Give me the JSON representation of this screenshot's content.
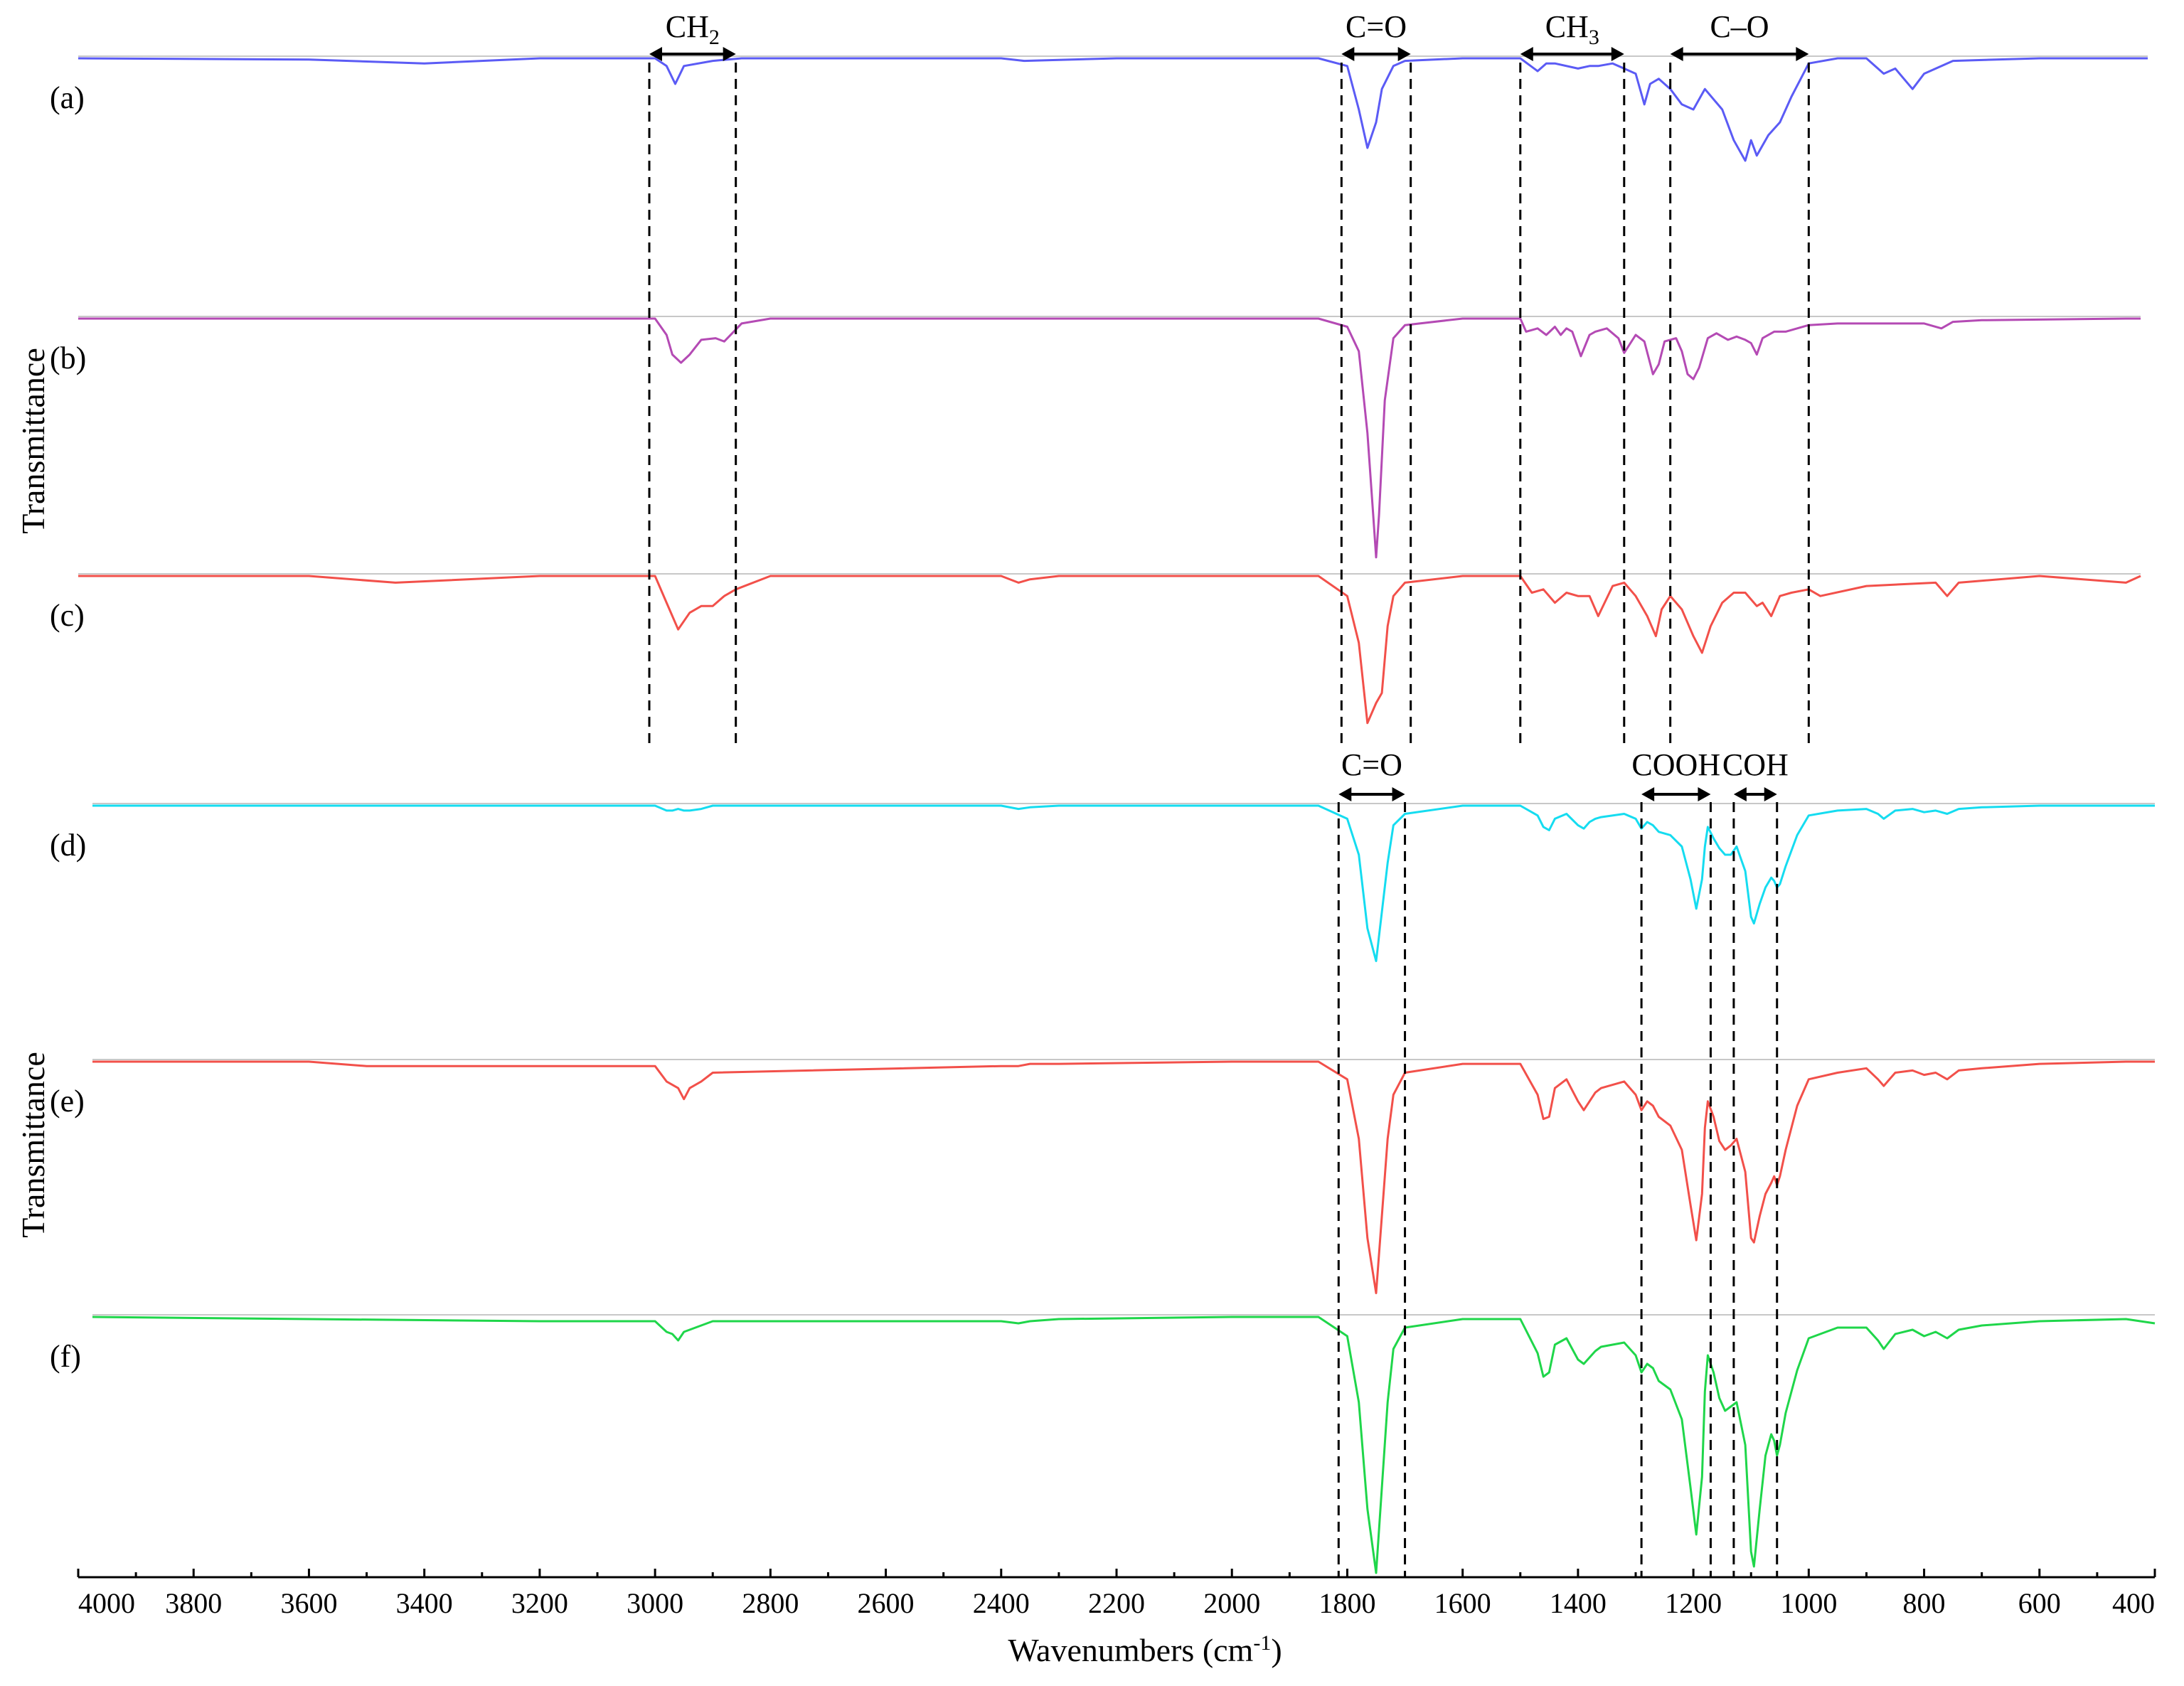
{
  "chart_data": {
    "type": "line",
    "x_axis": {
      "label": "Wavenumbers (cm",
      "label_sup": "-1",
      "label_end": ")",
      "xlim": [
        4000,
        400
      ],
      "ticks": [
        4000,
        3800,
        3600,
        3400,
        3200,
        3000,
        2800,
        2600,
        2400,
        2200,
        2000,
        1800,
        1600,
        1400,
        1200,
        1000,
        800,
        600,
        400
      ]
    },
    "y_axis": {
      "label": "Transmittance",
      "label_lower": "Transmittance"
    },
    "grid": false,
    "colors": {
      "a": "#5b5bf5",
      "b": "#b44ab4",
      "c": "#f2504a",
      "d": "#15dcf0",
      "e": "#f2504a",
      "f": "#1fd64a"
    },
    "series": [
      {
        "name": "(a)",
        "x": [
          4000,
          3600,
          3400,
          3200,
          3000,
          2980,
          2965,
          2950,
          2900,
          2850,
          2800,
          2400,
          2360,
          2200,
          2000,
          1850,
          1800,
          1780,
          1765,
          1750,
          1740,
          1720,
          1700,
          1600,
          1500,
          1470,
          1455,
          1440,
          1400,
          1380,
          1365,
          1340,
          1300,
          1285,
          1275,
          1260,
          1240,
          1220,
          1200,
          1180,
          1150,
          1130,
          1110,
          1100,
          1090,
          1070,
          1050,
          1030,
          1000,
          950,
          900,
          870,
          850,
          820,
          800,
          750,
          600,
          400
        ],
        "y": [
          0,
          -0.05,
          -0.2,
          0,
          0,
          -0.3,
          -1,
          -0.3,
          -0.1,
          0,
          0,
          0,
          -0.1,
          0,
          0,
          0,
          -0.3,
          -2,
          -3.5,
          -2.5,
          -1.2,
          -0.3,
          -0.1,
          0,
          0,
          -0.5,
          -0.2,
          -0.2,
          -0.4,
          -0.3,
          -0.3,
          -0.2,
          -0.6,
          -1.8,
          -1,
          -0.8,
          -1.2,
          -1.8,
          -2,
          -1.2,
          -2,
          -3.2,
          -4,
          -3.2,
          -3.8,
          -3,
          -2.5,
          -1.5,
          -0.2,
          0,
          0,
          -0.6,
          -0.4,
          -1.2,
          -0.6,
          -0.1,
          0,
          0
        ]
      },
      {
        "name": "(b)",
        "x": [
          4000,
          3600,
          3200,
          3000,
          2980,
          2970,
          2955,
          2940,
          2920,
          2895,
          2880,
          2850,
          2800,
          2400,
          2000,
          1850,
          1800,
          1780,
          1765,
          1755,
          1750,
          1745,
          1735,
          1720,
          1700,
          1600,
          1500,
          1490,
          1470,
          1455,
          1440,
          1430,
          1420,
          1410,
          1400,
          1395,
          1380,
          1370,
          1350,
          1330,
          1320,
          1300,
          1285,
          1270,
          1260,
          1250,
          1230,
          1220,
          1210,
          1200,
          1190,
          1175,
          1160,
          1140,
          1125,
          1110,
          1100,
          1090,
          1080,
          1060,
          1040,
          1020,
          1000,
          950,
          900,
          800,
          770,
          750,
          700,
          450,
          400
        ],
        "y": [
          0,
          0,
          0,
          0,
          -1,
          -2.2,
          -2.7,
          -2.2,
          -1.3,
          -1.2,
          -1.4,
          -0.3,
          0,
          0,
          0,
          0,
          -0.5,
          -2,
          -7,
          -12,
          -14.6,
          -12,
          -5,
          -1.2,
          -0.4,
          0,
          0,
          -0.8,
          -0.6,
          -1,
          -0.5,
          -1,
          -0.6,
          -0.8,
          -1.8,
          -2.3,
          -1,
          -0.8,
          -0.6,
          -1.2,
          -2.1,
          -1,
          -1.4,
          -3.4,
          -2.8,
          -1.4,
          -1.2,
          -2,
          -3.4,
          -3.7,
          -3,
          -1.2,
          -0.9,
          -1.3,
          -1.1,
          -1.3,
          -1.5,
          -2.2,
          -1.2,
          -0.8,
          -0.8,
          -0.6,
          -0.4,
          -0.3,
          -0.3,
          -0.3,
          -0.6,
          -0.2,
          -0.1,
          0,
          0
        ]
      },
      {
        "name": "(c)",
        "x": [
          4000,
          3600,
          3450,
          3200,
          3000,
          2980,
          2960,
          2940,
          2920,
          2900,
          2880,
          2860,
          2800,
          2400,
          2370,
          2350,
          2300,
          2000,
          1850,
          1800,
          1780,
          1765,
          1750,
          1740,
          1730,
          1720,
          1700,
          1600,
          1500,
          1480,
          1460,
          1440,
          1420,
          1400,
          1380,
          1365,
          1340,
          1320,
          1300,
          1280,
          1265,
          1255,
          1240,
          1220,
          1200,
          1185,
          1170,
          1150,
          1130,
          1110,
          1090,
          1080,
          1065,
          1050,
          1030,
          1000,
          980,
          900,
          780,
          760,
          740,
          600,
          450,
          400
        ],
        "y": [
          0,
          0,
          -0.2,
          0,
          0,
          -0.8,
          -1.6,
          -1.1,
          -0.9,
          -0.9,
          -0.6,
          -0.4,
          0,
          0,
          -0.2,
          -0.1,
          0,
          0,
          0,
          -0.6,
          -2,
          -4.4,
          -3.8,
          -3.5,
          -1.5,
          -0.6,
          -0.2,
          0,
          0,
          -0.5,
          -0.4,
          -0.8,
          -0.5,
          -0.6,
          -0.6,
          -1.2,
          -0.3,
          -0.2,
          -0.6,
          -1.2,
          -1.8,
          -1,
          -0.6,
          -1,
          -1.8,
          -2.3,
          -1.5,
          -0.8,
          -0.5,
          -0.5,
          -0.9,
          -0.8,
          -1.2,
          -0.6,
          -0.5,
          -0.4,
          -0.6,
          -0.3,
          -0.2,
          -0.6,
          -0.2,
          0,
          -0.2,
          0
        ]
      },
      {
        "name": "(d)",
        "x": [
          4000,
          3600,
          3200,
          3000,
          2980,
          2970,
          2960,
          2950,
          2940,
          2920,
          2900,
          2400,
          2370,
          2350,
          2300,
          2000,
          1850,
          1800,
          1780,
          1765,
          1750,
          1740,
          1730,
          1720,
          1700,
          1600,
          1500,
          1470,
          1460,
          1450,
          1440,
          1420,
          1400,
          1390,
          1380,
          1370,
          1360,
          1320,
          1300,
          1290,
          1280,
          1270,
          1260,
          1240,
          1220,
          1205,
          1195,
          1185,
          1180,
          1175,
          1165,
          1155,
          1145,
          1135,
          1125,
          1110,
          1100,
          1095,
          1085,
          1075,
          1065,
          1060,
          1055,
          1050,
          1040,
          1020,
          1000,
          950,
          900,
          880,
          870,
          850,
          820,
          800,
          780,
          760,
          740,
          700,
          600,
          450,
          400
        ],
        "y": [
          0,
          0,
          0,
          0,
          -0.3,
          -0.3,
          -0.2,
          -0.3,
          -0.3,
          -0.2,
          0,
          0,
          -0.2,
          -0.1,
          0,
          0,
          0,
          -0.8,
          -3,
          -7.5,
          -9.5,
          -6.5,
          -3.5,
          -1.2,
          -0.5,
          0,
          0,
          -0.6,
          -1.3,
          -1.5,
          -0.8,
          -0.5,
          -1.2,
          -1.4,
          -1,
          -0.8,
          -0.7,
          -0.5,
          -0.8,
          -1.4,
          -1,
          -1.2,
          -1.6,
          -1.8,
          -2.5,
          -4.5,
          -6.3,
          -4.5,
          -2.5,
          -1.3,
          -2,
          -2.6,
          -3,
          -3,
          -2.5,
          -4,
          -6.8,
          -7.2,
          -6,
          -5,
          -4.4,
          -4.6,
          -5,
          -4.8,
          -3.7,
          -1.8,
          -0.6,
          -0.3,
          -0.2,
          -0.5,
          -0.8,
          -0.3,
          -0.2,
          -0.4,
          -0.3,
          -0.5,
          -0.2,
          -0.1,
          0,
          0,
          0
        ]
      },
      {
        "name": "(e)",
        "x": [
          4000,
          3600,
          3500,
          3200,
          3000,
          2980,
          2960,
          2950,
          2940,
          2920,
          2900,
          2400,
          2370,
          2350,
          2300,
          2000,
          1850,
          1800,
          1780,
          1765,
          1750,
          1740,
          1730,
          1720,
          1700,
          1600,
          1500,
          1470,
          1460,
          1450,
          1440,
          1420,
          1400,
          1390,
          1380,
          1370,
          1360,
          1320,
          1300,
          1290,
          1280,
          1270,
          1260,
          1240,
          1220,
          1205,
          1195,
          1185,
          1180,
          1175,
          1165,
          1155,
          1145,
          1135,
          1125,
          1110,
          1100,
          1095,
          1085,
          1075,
          1065,
          1060,
          1055,
          1050,
          1040,
          1020,
          1000,
          950,
          900,
          880,
          870,
          850,
          820,
          800,
          780,
          760,
          740,
          700,
          600,
          450,
          400
        ],
        "y": [
          0,
          0,
          -0.2,
          -0.2,
          -0.2,
          -0.9,
          -1.2,
          -1.7,
          -1.2,
          -0.9,
          -0.5,
          -0.2,
          -0.2,
          -0.1,
          -0.1,
          0,
          0,
          -0.8,
          -3.5,
          -8,
          -10.5,
          -7,
          -3.5,
          -1.5,
          -0.5,
          -0.1,
          -0.1,
          -1.5,
          -2.6,
          -2.5,
          -1.2,
          -0.8,
          -1.8,
          -2.2,
          -1.8,
          -1.4,
          -1.2,
          -0.9,
          -1.5,
          -2.2,
          -1.8,
          -2,
          -2.5,
          -2.9,
          -4,
          -6.5,
          -8.1,
          -6,
          -3,
          -1.8,
          -2.5,
          -3.6,
          -4,
          -3.8,
          -3.5,
          -5,
          -8,
          -8.2,
          -7,
          -6,
          -5.5,
          -5.2,
          -5.6,
          -5.2,
          -4,
          -2,
          -0.8,
          -0.5,
          -0.3,
          -0.8,
          -1.1,
          -0.5,
          -0.4,
          -0.6,
          -0.5,
          -0.8,
          -0.4,
          -0.3,
          -0.1,
          0,
          0
        ]
      },
      {
        "name": "(f)",
        "x": [
          4000,
          3600,
          3200,
          3000,
          2980,
          2970,
          2960,
          2950,
          2940,
          2920,
          2900,
          2400,
          2370,
          2350,
          2300,
          2000,
          1850,
          1800,
          1780,
          1765,
          1750,
          1740,
          1730,
          1720,
          1700,
          1600,
          1500,
          1470,
          1460,
          1450,
          1440,
          1420,
          1400,
          1390,
          1380,
          1370,
          1360,
          1320,
          1300,
          1290,
          1280,
          1270,
          1260,
          1240,
          1220,
          1205,
          1195,
          1185,
          1180,
          1175,
          1165,
          1155,
          1145,
          1135,
          1125,
          1110,
          1100,
          1095,
          1085,
          1075,
          1065,
          1060,
          1055,
          1050,
          1040,
          1020,
          1000,
          950,
          900,
          880,
          870,
          850,
          820,
          800,
          780,
          760,
          740,
          700,
          600,
          450,
          400
        ],
        "y": [
          0,
          -0.1,
          -0.2,
          -0.2,
          -0.7,
          -0.8,
          -1.1,
          -0.7,
          -0.6,
          -0.4,
          -0.2,
          -0.2,
          -0.3,
          -0.2,
          -0.1,
          0,
          0,
          -0.9,
          -4,
          -9,
          -12,
          -8,
          -4,
          -1.5,
          -0.5,
          -0.1,
          -0.1,
          -1.7,
          -2.8,
          -2.6,
          -1.3,
          -1,
          -2,
          -2.2,
          -1.9,
          -1.6,
          -1.4,
          -1.2,
          -1.8,
          -2.6,
          -2.2,
          -2.4,
          -3,
          -3.4,
          -4.8,
          -8,
          -10.2,
          -7.5,
          -3.5,
          -1.8,
          -2.6,
          -3.8,
          -4.4,
          -4.2,
          -4,
          -6,
          -11,
          -11.7,
          -9,
          -6.5,
          -5.5,
          -5.8,
          -6.5,
          -6,
          -4.5,
          -2.5,
          -1,
          -0.5,
          -0.5,
          -1.1,
          -1.5,
          -0.8,
          -0.6,
          -0.9,
          -0.7,
          -1,
          -0.6,
          -0.4,
          -0.2,
          -0.1,
          -0.3
        ]
      }
    ],
    "annotations_top": [
      {
        "label": "CH",
        "sub": "2",
        "x_from": 3010,
        "x_to": 2860
      },
      {
        "label": "C=O",
        "sub": "",
        "x_from": 1810,
        "x_to": 1690
      },
      {
        "label": "CH",
        "sub": "3",
        "x_from": 1500,
        "x_to": 1320
      },
      {
        "label": "C–O",
        "sub": "",
        "x_from": 1240,
        "x_to": 1000
      }
    ],
    "annotations_bottom": [
      {
        "label": "C=O",
        "sub": "",
        "x_from": 1815,
        "x_to": 1700
      },
      {
        "label": "COOH",
        "sub": "",
        "x_from": 1290,
        "x_to": 1170
      },
      {
        "label": "COH",
        "sub": "",
        "x_from": 1130,
        "x_to": 1055
      }
    ]
  }
}
